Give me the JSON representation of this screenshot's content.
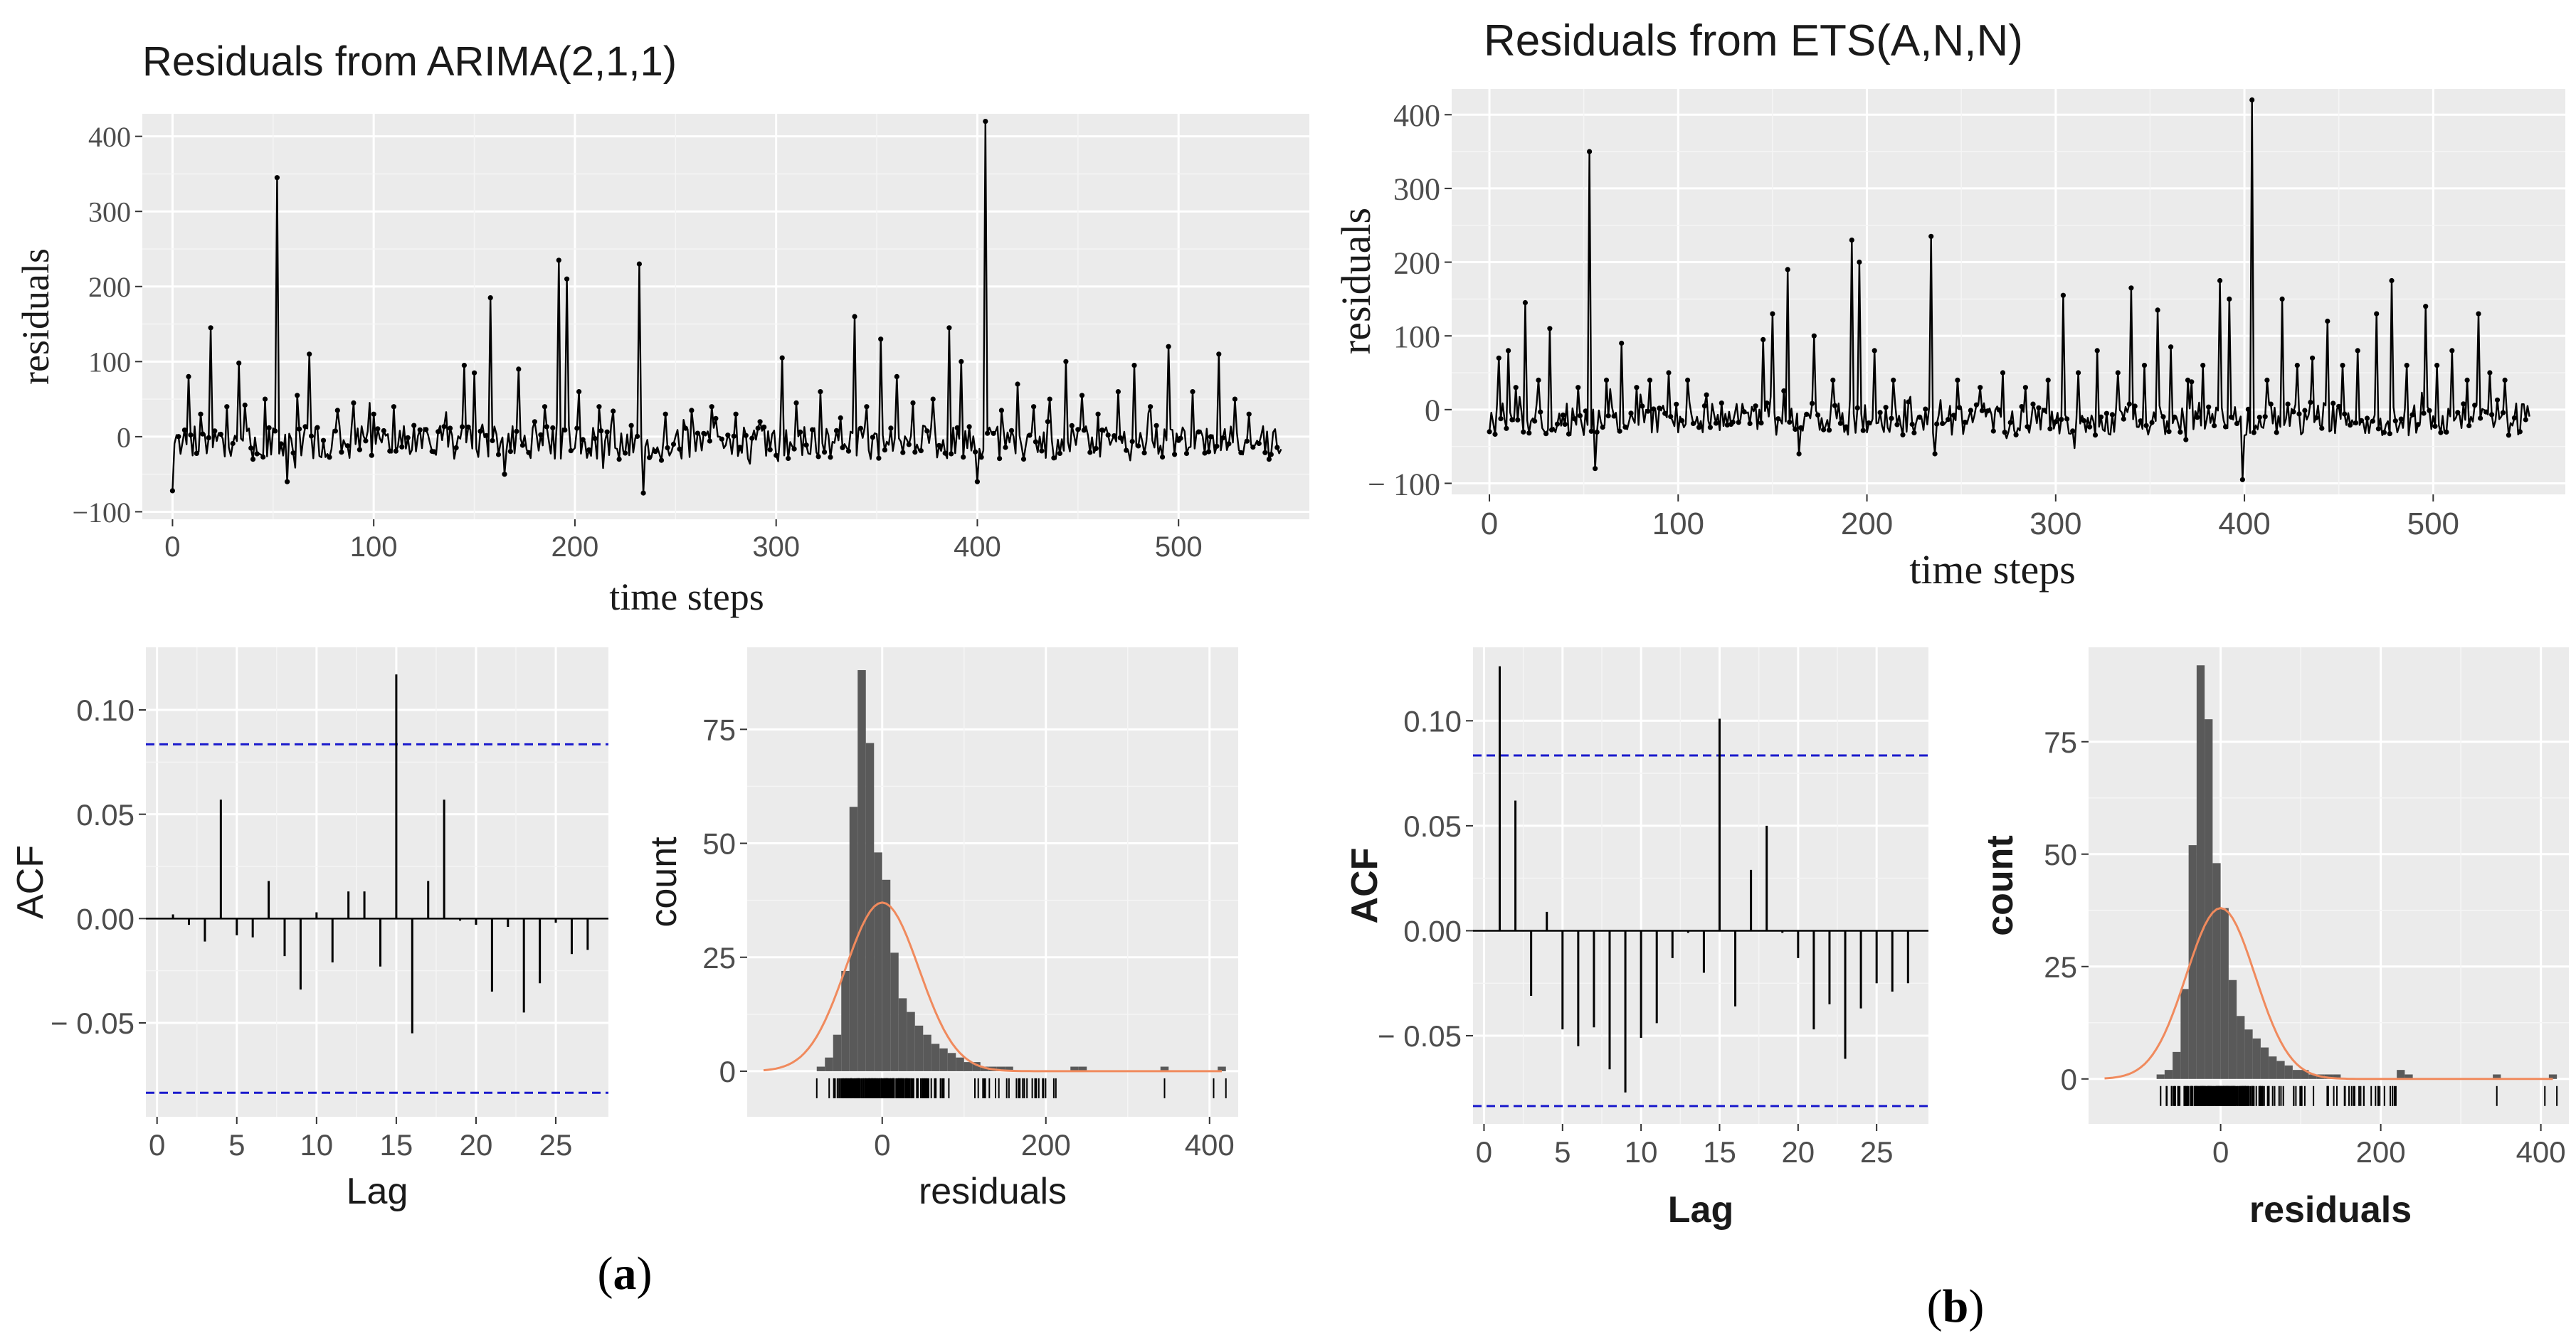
{
  "colors": {
    "panel": "#ebebeb",
    "grid_major": "#ffffff",
    "series": "#000000",
    "bar": "#595959",
    "acf_bound": "#1a1acc",
    "normal_curve": "#f08a5d",
    "text": "#1a1a1a",
    "tick": "#4d4d4d"
  },
  "panels": [
    {
      "id": "a",
      "label_open": "(",
      "label_letter": "a",
      "label_close": ")",
      "timeseries": {
        "type": "line",
        "title": "Residuals from ARIMA(2,1,1)",
        "xlabel": "time steps",
        "ylabel": "residuals",
        "xlim": [
          -15,
          565
        ],
        "ylim": [
          -110,
          430
        ],
        "xticks": [
          0,
          100,
          200,
          300,
          400,
          500
        ],
        "yticks": [
          -100,
          0,
          100,
          200,
          300,
          400
        ],
        "ytick_labels": [
          "−100",
          "0",
          "100",
          "200",
          "300",
          "400"
        ],
        "n": 552,
        "spikes": [
          [
            0,
            -72
          ],
          [
            8,
            80
          ],
          [
            14,
            30
          ],
          [
            19,
            145
          ],
          [
            27,
            40
          ],
          [
            33,
            98
          ],
          [
            40,
            -30
          ],
          [
            46,
            50
          ],
          [
            52,
            345
          ],
          [
            57,
            -60
          ],
          [
            62,
            55
          ],
          [
            68,
            110
          ],
          [
            75,
            -5
          ],
          [
            82,
            35
          ],
          [
            90,
            45
          ],
          [
            100,
            30
          ],
          [
            110,
            40
          ],
          [
            120,
            15
          ],
          [
            130,
            -20
          ],
          [
            145,
            95
          ],
          [
            150,
            85
          ],
          [
            158,
            185
          ],
          [
            165,
            -50
          ],
          [
            172,
            90
          ],
          [
            180,
            20
          ],
          [
            185,
            40
          ],
          [
            192,
            235
          ],
          [
            196,
            210
          ],
          [
            202,
            60
          ],
          [
            212,
            40
          ],
          [
            222,
            -30
          ],
          [
            232,
            230
          ],
          [
            234,
            -75
          ],
          [
            245,
            30
          ],
          [
            258,
            35
          ],
          [
            268,
            40
          ],
          [
            280,
            30
          ],
          [
            292,
            20
          ],
          [
            303,
            105
          ],
          [
            310,
            45
          ],
          [
            322,
            60
          ],
          [
            332,
            25
          ],
          [
            339,
            160
          ],
          [
            345,
            40
          ],
          [
            352,
            130
          ],
          [
            360,
            80
          ],
          [
            368,
            45
          ],
          [
            378,
            50
          ],
          [
            386,
            145
          ],
          [
            392,
            100
          ],
          [
            400,
            -60
          ],
          [
            404,
            420
          ],
          [
            412,
            35
          ],
          [
            420,
            70
          ],
          [
            428,
            40
          ],
          [
            436,
            50
          ],
          [
            444,
            100
          ],
          [
            452,
            55
          ],
          [
            460,
            30
          ],
          [
            470,
            60
          ],
          [
            478,
            95
          ],
          [
            486,
            40
          ],
          [
            495,
            120
          ],
          [
            500,
            -5
          ],
          [
            507,
            60
          ],
          [
            515,
            -20
          ],
          [
            520,
            110
          ],
          [
            528,
            50
          ],
          [
            535,
            30
          ],
          [
            545,
            -30
          ]
        ],
        "base_low": -30,
        "base_high": 15
      },
      "acf": {
        "type": "bar",
        "xlabel": "Lag",
        "ylabel": "ACF",
        "xlim": [
          -0.7,
          28.3
        ],
        "ylim": [
          -0.095,
          0.13
        ],
        "xticks": [
          0,
          5,
          10,
          15,
          20,
          25
        ],
        "yticks": [
          -0.05,
          0,
          0.05,
          0.1
        ],
        "ytick_labels": [
          "− 0.05",
          "0.00",
          "0.05",
          "0.10"
        ],
        "bound": 0.0835,
        "lags": [
          1,
          2,
          3,
          4,
          5,
          6,
          7,
          8,
          9,
          10,
          11,
          12,
          13,
          14,
          15,
          16,
          17,
          18,
          19,
          20,
          21,
          22,
          23,
          24,
          25,
          26,
          27
        ],
        "values": [
          0.002,
          -0.003,
          -0.011,
          0.057,
          -0.008,
          -0.009,
          0.018,
          -0.018,
          -0.034,
          0.003,
          -0.021,
          0.013,
          0.013,
          -0.023,
          0.117,
          -0.055,
          0.018,
          0.057,
          -0.001,
          -0.003,
          -0.035,
          -0.004,
          -0.045,
          -0.031,
          -0.002,
          -0.017,
          -0.015
        ]
      },
      "hist": {
        "type": "bar",
        "xlabel": "residuals",
        "ylabel": "count",
        "xlim": [
          -165,
          435
        ],
        "ylim": [
          -10,
          93
        ],
        "xticks": [
          0,
          200,
          400
        ],
        "yticks": [
          0,
          25,
          50,
          75
        ],
        "bin_start": -80,
        "bin_width": 10,
        "counts": [
          1,
          3,
          8,
          22,
          58,
          88,
          72,
          48,
          42,
          26,
          16,
          13,
          10,
          8,
          6,
          5,
          4,
          3,
          2,
          2,
          1,
          1,
          1,
          1,
          0,
          0,
          0,
          0,
          0,
          0,
          0,
          1,
          1,
          0,
          0,
          0,
          0,
          0,
          0,
          0,
          0,
          0,
          1,
          0,
          0,
          0,
          0,
          0,
          0,
          1
        ],
        "normal": {
          "mean": 0,
          "sd": 45,
          "peak": 37
        }
      }
    },
    {
      "id": "b",
      "label_open": "(",
      "label_letter": "b",
      "label_close": ")",
      "timeseries": {
        "type": "line",
        "title": "Residuals from ETS(A,N,N)",
        "xlabel": "time steps",
        "ylabel": "residuals",
        "xlim": [
          -20,
          570
        ],
        "ylim": [
          -115,
          435
        ],
        "xticks": [
          0,
          100,
          200,
          300,
          400,
          500
        ],
        "yticks": [
          -100,
          0,
          100,
          200,
          300,
          400
        ],
        "ytick_labels": [
          "− 100",
          "0",
          "100",
          "200",
          "300",
          "400"
        ],
        "n": 552,
        "spikes": [
          [
            0,
            -30
          ],
          [
            5,
            70
          ],
          [
            10,
            80
          ],
          [
            14,
            30
          ],
          [
            19,
            145
          ],
          [
            26,
            40
          ],
          [
            32,
            110
          ],
          [
            40,
            -20
          ],
          [
            47,
            30
          ],
          [
            53,
            350
          ],
          [
            56,
            -80
          ],
          [
            62,
            40
          ],
          [
            70,
            90
          ],
          [
            78,
            30
          ],
          [
            85,
            40
          ],
          [
            95,
            50
          ],
          [
            105,
            40
          ],
          [
            115,
            20
          ],
          [
            128,
            -20
          ],
          [
            145,
            95
          ],
          [
            150,
            130
          ],
          [
            158,
            190
          ],
          [
            164,
            -60
          ],
          [
            172,
            100
          ],
          [
            182,
            40
          ],
          [
            192,
            230
          ],
          [
            196,
            200
          ],
          [
            204,
            80
          ],
          [
            214,
            40
          ],
          [
            224,
            -20
          ],
          [
            234,
            235
          ],
          [
            236,
            -60
          ],
          [
            248,
            40
          ],
          [
            260,
            30
          ],
          [
            272,
            50
          ],
          [
            284,
            30
          ],
          [
            296,
            40
          ],
          [
            304,
            155
          ],
          [
            312,
            50
          ],
          [
            322,
            80
          ],
          [
            333,
            50
          ],
          [
            340,
            165
          ],
          [
            347,
            60
          ],
          [
            354,
            135
          ],
          [
            361,
            85
          ],
          [
            370,
            40
          ],
          [
            378,
            60
          ],
          [
            387,
            175
          ],
          [
            392,
            150
          ],
          [
            399,
            -95
          ],
          [
            404,
            420
          ],
          [
            412,
            40
          ],
          [
            420,
            150
          ],
          [
            428,
            60
          ],
          [
            436,
            70
          ],
          [
            444,
            120
          ],
          [
            452,
            60
          ],
          [
            460,
            80
          ],
          [
            470,
            130
          ],
          [
            478,
            175
          ],
          [
            486,
            60
          ],
          [
            496,
            140
          ],
          [
            502,
            60
          ],
          [
            510,
            80
          ],
          [
            518,
            40
          ],
          [
            524,
            130
          ],
          [
            530,
            50
          ],
          [
            538,
            40
          ],
          [
            546,
            -30
          ]
        ],
        "base_low": -35,
        "base_high": 10
      },
      "acf": {
        "type": "bar",
        "xlabel": "Lag",
        "ylabel": "ACF",
        "xlim": [
          -0.7,
          28.3
        ],
        "ylim": [
          -0.092,
          0.135
        ],
        "xticks": [
          0,
          5,
          10,
          15,
          20,
          25
        ],
        "yticks": [
          -0.05,
          0,
          0.05,
          0.1
        ],
        "ytick_labels": [
          "− 0.05",
          "0.00",
          "0.05",
          "0.10"
        ],
        "bound": 0.0835,
        "lags": [
          1,
          2,
          3,
          4,
          5,
          6,
          7,
          8,
          9,
          10,
          11,
          12,
          13,
          14,
          15,
          16,
          17,
          18,
          19,
          20,
          21,
          22,
          23,
          24,
          25,
          26,
          27
        ],
        "values": [
          0.126,
          0.062,
          -0.031,
          0.009,
          -0.047,
          -0.055,
          -0.046,
          -0.066,
          -0.077,
          -0.051,
          -0.044,
          -0.013,
          -0.001,
          -0.02,
          0.101,
          -0.036,
          0.029,
          0.05,
          -0.001,
          -0.013,
          -0.047,
          -0.035,
          -0.061,
          -0.037,
          -0.025,
          -0.029,
          -0.025
        ]
      },
      "hist": {
        "type": "bar",
        "xlabel": "residuals",
        "ylabel": "count",
        "xlim": [
          -165,
          435
        ],
        "ylim": [
          -10,
          96
        ],
        "xticks": [
          0,
          200,
          400
        ],
        "yticks": [
          0,
          25,
          50,
          75
        ],
        "bin_start": -80,
        "bin_width": 10,
        "counts": [
          1,
          2,
          6,
          20,
          52,
          92,
          80,
          48,
          38,
          22,
          14,
          11,
          9,
          7,
          5,
          4,
          3,
          2,
          2,
          1,
          1,
          1,
          1,
          0,
          0,
          0,
          0,
          0,
          0,
          0,
          2,
          1,
          0,
          0,
          0,
          0,
          0,
          0,
          0,
          0,
          0,
          0,
          1,
          0,
          0,
          0,
          0,
          0,
          0,
          1
        ],
        "normal": {
          "mean": 0,
          "sd": 43,
          "peak": 38
        }
      }
    }
  ]
}
